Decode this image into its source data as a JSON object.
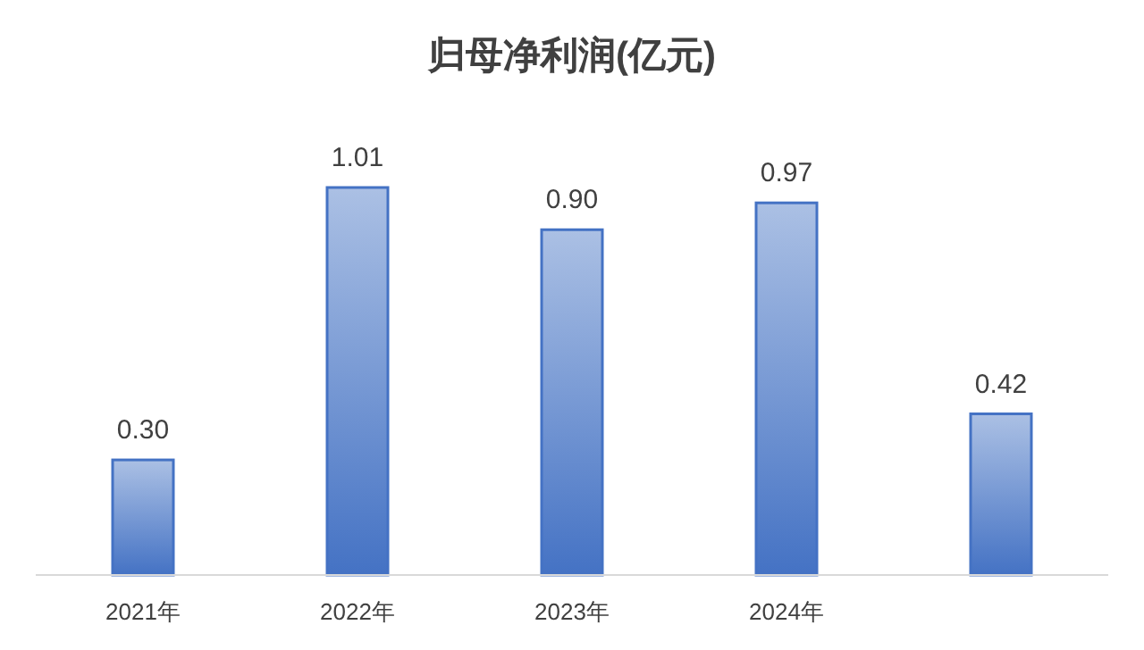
{
  "chart_data": {
    "type": "bar",
    "title": "归母净利润(亿元)",
    "categories": [
      "2021年",
      "2022年",
      "2023年",
      "2024年",
      null
    ],
    "values": [
      0.3,
      1.01,
      0.9,
      0.97,
      0.42
    ],
    "value_labels": [
      "0.30",
      "1.01",
      "0.90",
      "0.97",
      "0.42"
    ],
    "color": "#4472c4"
  }
}
